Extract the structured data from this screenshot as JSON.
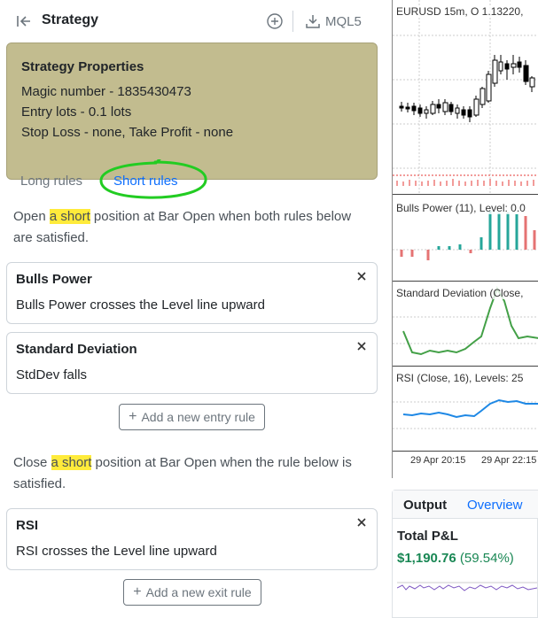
{
  "header": {
    "title": "Strategy",
    "export_label": "MQL5"
  },
  "properties": {
    "title": "Strategy Properties",
    "lines": [
      "Magic number - 1835430473",
      "Entry lots - 0.1 lots",
      "Stop Loss - none, Take Profit - none"
    ]
  },
  "tabs": {
    "long": "Long rules",
    "short": "Short rules"
  },
  "entry": {
    "desc_pre": "Open ",
    "desc_hl": "a short",
    "desc_post": " position at Bar Open when both rules below are satisfied.",
    "rules": [
      {
        "title": "Bulls Power",
        "desc": "Bulls Power crosses the Level line upward"
      },
      {
        "title": "Standard Deviation",
        "desc": "StdDev falls"
      }
    ],
    "add_label": "Add a new entry rule"
  },
  "exit": {
    "desc_pre": "Close ",
    "desc_hl": "a short",
    "desc_post": " position at Bar Open when the rule below is satisfied.",
    "rules": [
      {
        "title": "RSI",
        "desc": "RSI crosses the Level line upward"
      }
    ],
    "add_label": "Add a new exit rule"
  },
  "chart": {
    "main_label": "EURUSD 15m, O 1.13220,",
    "bulls_label": "Bulls Power (11), Level: 0.0",
    "std_label": "Standard Deviation (Close,",
    "rsi_label": "RSI (Close, 16), Levels: 25",
    "x_labels": [
      "29 Apr 20:15",
      "29 Apr 22:15"
    ]
  },
  "output": {
    "tab_output": "Output",
    "tab_overview": "Overview",
    "total_label": "Total P&L",
    "pnl_value": "$1,190.76",
    "pnl_pct": "(59.54%)"
  },
  "colors": {
    "accent": "#0d6efd",
    "positive": "#198754",
    "highlight": "#ffeb3b",
    "props_bg": "#c2bc8f"
  }
}
